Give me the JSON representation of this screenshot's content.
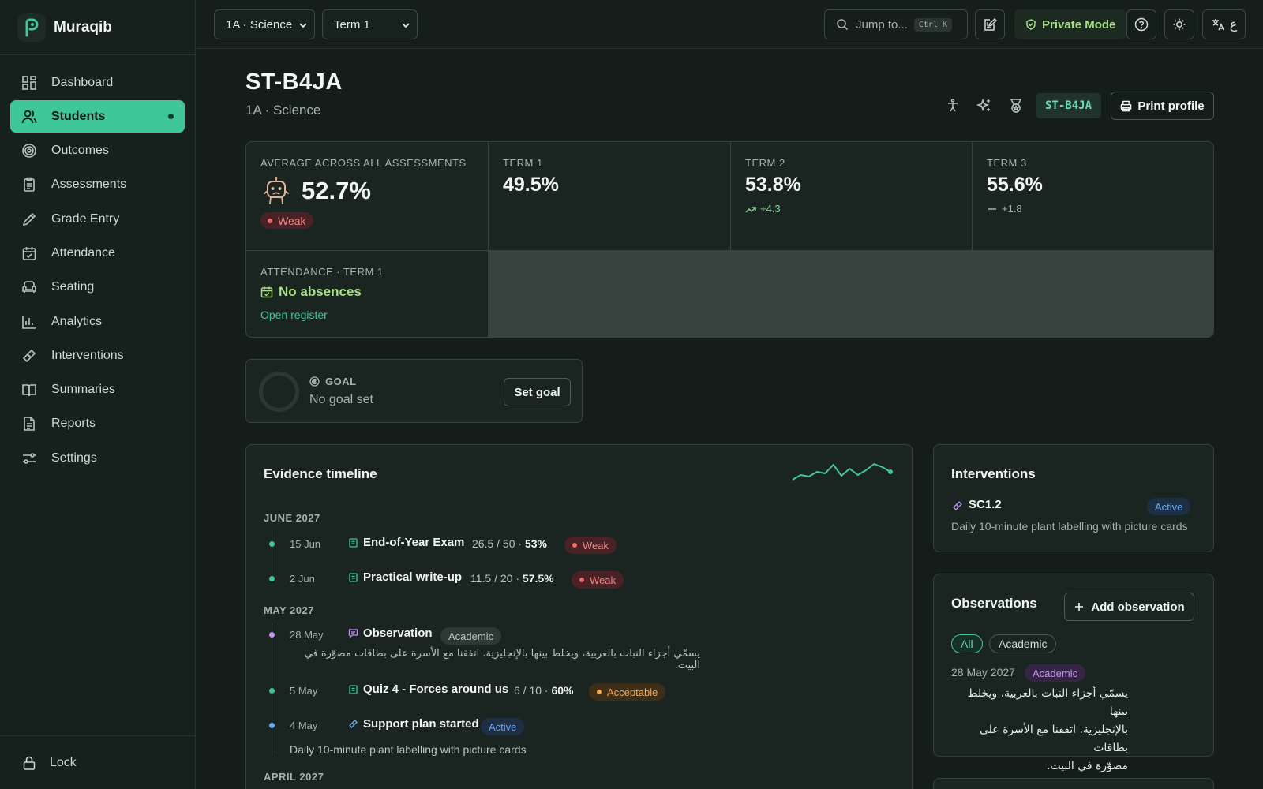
{
  "app": {
    "name": "Muraqib"
  },
  "sidebar": {
    "items": [
      {
        "label": "Dashboard",
        "icon": "dashboard-icon"
      },
      {
        "label": "Students",
        "icon": "users-icon",
        "active": true
      },
      {
        "label": "Outcomes",
        "icon": "target-icon"
      },
      {
        "label": "Assessments",
        "icon": "clipboard-icon"
      },
      {
        "label": "Grade Entry",
        "icon": "pencil-icon"
      },
      {
        "label": "Attendance",
        "icon": "calendar-check-icon"
      },
      {
        "label": "Seating",
        "icon": "armchair-icon"
      },
      {
        "label": "Analytics",
        "icon": "bar-chart-icon"
      },
      {
        "label": "Interventions",
        "icon": "bandage-icon"
      },
      {
        "label": "Summaries",
        "icon": "book-open-icon"
      },
      {
        "label": "Reports",
        "icon": "file-text-icon"
      },
      {
        "label": "Settings",
        "icon": "sliders-icon"
      }
    ],
    "lock_label": "Lock"
  },
  "topbar": {
    "class_select": "1A · Science",
    "term_select": "Term 1",
    "search_placeholder": "Jump to...",
    "search_shortcut": "Ctrl K",
    "private_mode": "Private Mode",
    "lang_label": "ع"
  },
  "student": {
    "id": "ST-B4JA",
    "class": "1A · Science",
    "id_chip": "ST-B4JA",
    "print_label": "Print profile"
  },
  "stats": {
    "average_label": "Average across all assessments",
    "average_value": "52.7%",
    "average_badge": "Weak",
    "term1_label": "Term 1",
    "term1_value": "49.5%",
    "term2_label": "Term 2",
    "term2_value": "53.8%",
    "term2_delta": "+4.3",
    "term3_label": "Term 3",
    "term3_value": "55.6%",
    "term3_delta": "+1.8",
    "attendance_label": "Attendance · Term 1",
    "attendance_value": "No absences",
    "attendance_link": "Open register"
  },
  "goal": {
    "label": "GOAL",
    "value": "No goal set",
    "button": "Set goal"
  },
  "timeline": {
    "title": "Evidence timeline",
    "sparkline": [
      22,
      16,
      18,
      12,
      14,
      3,
      17,
      8,
      16,
      10,
      2,
      6,
      12
    ],
    "months": [
      "JUNE 2027",
      "MAY 2027",
      "APRIL 2027"
    ],
    "entries": [
      {
        "date": "15 Jun",
        "name": "End-of-Year Exam",
        "score": "26.5 / 50 · ",
        "pct": "53%",
        "badge": "Weak"
      },
      {
        "date": "2 Jun",
        "name": "Practical write-up",
        "score": "11.5 / 20 · ",
        "pct": "57.5%",
        "badge": "Weak"
      },
      {
        "date": "28 May",
        "name": "Observation",
        "tag": "Academic",
        "note": "يسمّي أجزاء النبات بالعربية، ويخلط بينها بالإنجليزية. اتفقنا مع الأسرة على بطاقات مصوّرة في البيت."
      },
      {
        "date": "5 May",
        "name": "Quiz 4 - Forces around us",
        "score": "6 / 10 · ",
        "pct": "60%",
        "badge": "Acceptable"
      },
      {
        "date": "4 May",
        "name": "Support plan started",
        "badge": "Active",
        "note": "Daily 10-minute plant labelling with picture cards"
      }
    ]
  },
  "interventions": {
    "title": "Interventions",
    "item_code": "SC1.2",
    "item_status": "Active",
    "item_desc": "Daily 10-minute plant labelling with picture cards"
  },
  "observations": {
    "title": "Observations",
    "add_label": "Add observation",
    "filter_all": "All",
    "filter_academic": "Academic",
    "entry_date": "28 May 2027",
    "entry_tag": "Academic",
    "entry_lines": [
      "يسمّي أجزاء النبات بالعربية، ويخلط بينها",
      "بالإنجليزية. اتفقنا مع الأسرة على بطاقات",
      "مصوّرة في البيت."
    ]
  },
  "colors": {
    "accent": "#3fc79a",
    "background": "#141d1a",
    "weak": "#ef6b6b",
    "acceptable": "#f3a744",
    "active": "#6aa9f0",
    "academic": "#c594f2"
  }
}
